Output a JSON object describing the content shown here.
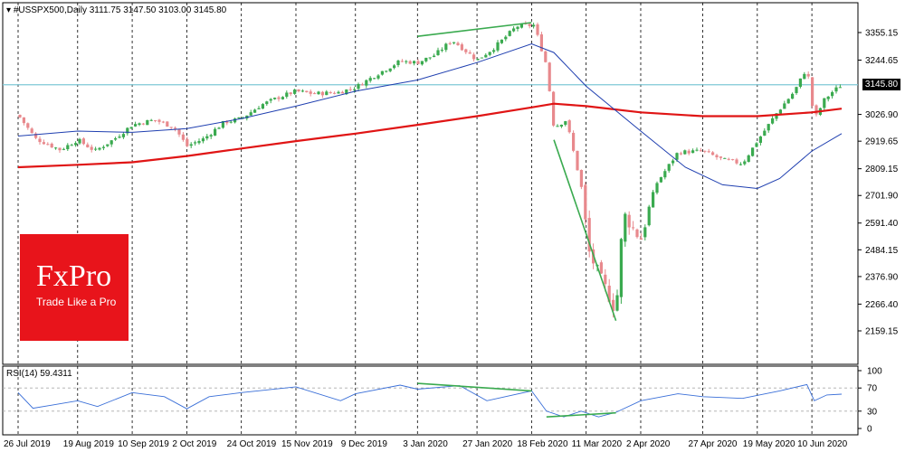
{
  "header": {
    "symbol": "#USSPX500,Daily",
    "ohlc": "3111.75 3147.50 3103.00 3145.80",
    "rsi_label": "RSI(14) 59.4311"
  },
  "branding": {
    "logo_text": "FxPro",
    "tagline": "Trade Like a Pro"
  },
  "colors": {
    "bull": "#3aaa4f",
    "bear": "#e8898d",
    "ma_blue": "#1f3fb0",
    "ma_red": "#e01515",
    "current_line": "#7fc8d6",
    "divergence": "#3aaa4f",
    "rsi_line": "#3a6fd8",
    "logo_bg": "#e8141b"
  },
  "chart_data": [
    {
      "type": "candlestick",
      "title": "#USSPX500,Daily",
      "y_ticks": [
        "3355.15",
        "3244.65",
        "3145.80",
        "3026.90",
        "2919.65",
        "2809.15",
        "2701.90",
        "2591.40",
        "2484.15",
        "2376.90",
        "2266.40",
        "2159.15"
      ],
      "x_ticks": [
        "26 Jul 2019",
        "19 Aug 2019",
        "10 Sep 2019",
        "2 Oct 2019",
        "24 Oct 2019",
        "15 Nov 2019",
        "9 Dec 2019",
        "3 Jan 2020",
        "27 Jan 2020",
        "18 Feb 2020",
        "11 Mar 2020",
        "2 Apr 2020",
        "27 Apr 2020",
        "19 May 2020",
        "10 Jun 2020"
      ],
      "ylim": [
        2150,
        3420
      ],
      "current_price": 3145.8,
      "close_path": [
        [
          "26 Jul 2019",
          3025
        ],
        [
          "2 Aug 2019",
          2930
        ],
        [
          "12 Aug 2019",
          2885
        ],
        [
          "19 Aug 2019",
          2925
        ],
        [
          "26 Aug 2019",
          2880
        ],
        [
          "3 Sep 2019",
          2930
        ],
        [
          "10 Sep 2019",
          2985
        ],
        [
          "19 Sep 2019",
          3005
        ],
        [
          "27 Sep 2019",
          2975
        ],
        [
          "2 Oct 2019",
          2900
        ],
        [
          "9 Oct 2019",
          2930
        ],
        [
          "17 Oct 2019",
          2995
        ],
        [
          "24 Oct 2019",
          3010
        ],
        [
          "1 Nov 2019",
          3065
        ],
        [
          "8 Nov 2019",
          3095
        ],
        [
          "15 Nov 2019",
          3120
        ],
        [
          "22 Nov 2019",
          3110
        ],
        [
          "2 Dec 2019",
          3115
        ],
        [
          "9 Dec 2019",
          3135
        ],
        [
          "18 Dec 2019",
          3190
        ],
        [
          "27 Dec 2019",
          3240
        ],
        [
          "3 Jan 2020",
          3235
        ],
        [
          "10 Jan 2020",
          3265
        ],
        [
          "17 Jan 2020",
          3325
        ],
        [
          "27 Jan 2020",
          3245
        ],
        [
          "3 Feb 2020",
          3295
        ],
        [
          "12 Feb 2020",
          3380
        ],
        [
          "19 Feb 2020",
          3385
        ],
        [
          "24 Feb 2020",
          3225
        ],
        [
          "27 Feb 2020",
          2975
        ],
        [
          "3 Mar 2020",
          3005
        ],
        [
          "9 Mar 2020",
          2740
        ],
        [
          "12 Mar 2020",
          2480
        ],
        [
          "16 Mar 2020",
          2385
        ],
        [
          "20 Mar 2020",
          2305
        ],
        [
          "23 Mar 2020",
          2235
        ],
        [
          "26 Mar 2020",
          2630
        ],
        [
          "2 Apr 2020",
          2525
        ],
        [
          "8 Apr 2020",
          2745
        ],
        [
          "17 Apr 2020",
          2875
        ],
        [
          "27 Apr 2020",
          2880
        ],
        [
          "5 May 2020",
          2845
        ],
        [
          "13 May 2020",
          2830
        ],
        [
          "19 May 2020",
          2920
        ],
        [
          "27 May 2020",
          3035
        ],
        [
          "3 Jun 2020",
          3120
        ],
        [
          "8 Jun 2020",
          3215
        ],
        [
          "11 Jun 2020",
          3005
        ],
        [
          "15 Jun 2020",
          3085
        ],
        [
          "18 Jun 2020",
          3115
        ],
        [
          "22 Jun 2020",
          3145.8
        ]
      ],
      "ma_blue": [
        [
          "26 Jul 2019",
          2940
        ],
        [
          "19 Aug 2019",
          2960
        ],
        [
          "10 Sep 2019",
          2955
        ],
        [
          "2 Oct 2019",
          2970
        ],
        [
          "24 Oct 2019",
          3010
        ],
        [
          "15 Nov 2019",
          3060
        ],
        [
          "9 Dec 2019",
          3120
        ],
        [
          "3 Jan 2020",
          3165
        ],
        [
          "27 Jan 2020",
          3235
        ],
        [
          "18 Feb 2020",
          3310
        ],
        [
          "27 Feb 2020",
          3275
        ],
        [
          "11 Mar 2020",
          3140
        ],
        [
          "2 Apr 2020",
          2960
        ],
        [
          "20 Apr 2020",
          2815
        ],
        [
          "5 May 2020",
          2745
        ],
        [
          "19 May 2020",
          2730
        ],
        [
          "28 May 2020",
          2770
        ],
        [
          "10 Jun 2020",
          2880
        ],
        [
          "22 Jun 2020",
          2950
        ]
      ],
      "ma_red": [
        [
          "26 Jul 2019",
          2815
        ],
        [
          "19 Aug 2019",
          2825
        ],
        [
          "10 Sep 2019",
          2835
        ],
        [
          "2 Oct 2019",
          2860
        ],
        [
          "24 Oct 2019",
          2890
        ],
        [
          "15 Nov 2019",
          2920
        ],
        [
          "9 Dec 2019",
          2950
        ],
        [
          "3 Jan 2020",
          2985
        ],
        [
          "27 Jan 2020",
          3020
        ],
        [
          "18 Feb 2020",
          3055
        ],
        [
          "27 Feb 2020",
          3070
        ],
        [
          "11 Mar 2020",
          3060
        ],
        [
          "2 Apr 2020",
          3035
        ],
        [
          "27 Apr 2020",
          3020
        ],
        [
          "19 May 2020",
          3020
        ],
        [
          "10 Jun 2020",
          3035
        ],
        [
          "22 Jun 2020",
          3050
        ]
      ],
      "divergence_lines": [
        [
          [
            "3 Jan 2020",
            3340
          ],
          [
            "18 Feb 2020",
            3395
          ]
        ],
        [
          [
            "27 Feb 2020",
            2925
          ],
          [
            "23 Mar 2020",
            2200
          ]
        ]
      ]
    },
    {
      "type": "line",
      "title": "RSI(14) 59.4311",
      "value": 59.4311,
      "ylim": [
        0,
        100
      ],
      "y_ticks": [
        100,
        70,
        30,
        0
      ],
      "levels": [
        70,
        30
      ],
      "rsi_path": [
        [
          "26 Jul 2019",
          62
        ],
        [
          "1 Aug 2019",
          35
        ],
        [
          "8 Aug 2019",
          40
        ],
        [
          "19 Aug 2019",
          48
        ],
        [
          "27 Aug 2019",
          38
        ],
        [
          "10 Sep 2019",
          62
        ],
        [
          "23 Sep 2019",
          55
        ],
        [
          "2 Oct 2019",
          34
        ],
        [
          "11 Oct 2019",
          55
        ],
        [
          "24 Oct 2019",
          62
        ],
        [
          "15 Nov 2019",
          72
        ],
        [
          "3 Dec 2019",
          48
        ],
        [
          "9 Dec 2019",
          60
        ],
        [
          "27 Dec 2019",
          75
        ],
        [
          "3 Jan 2020",
          68
        ],
        [
          "20 Jan 2020",
          74
        ],
        [
          "31 Jan 2020",
          48
        ],
        [
          "18 Feb 2020",
          65
        ],
        [
          "24 Feb 2020",
          30
        ],
        [
          "2 Mar 2020",
          20
        ],
        [
          "9 Mar 2020",
          30
        ],
        [
          "16 Mar 2020",
          20
        ],
        [
          "23 Mar 2020",
          28
        ],
        [
          "2 Apr 2020",
          48
        ],
        [
          "17 Apr 2020",
          60
        ],
        [
          "27 Apr 2020",
          55
        ],
        [
          "13 May 2020",
          52
        ],
        [
          "28 May 2020",
          65
        ],
        [
          "8 Jun 2020",
          76
        ],
        [
          "11 Jun 2020",
          48
        ],
        [
          "16 Jun 2020",
          58
        ],
        [
          "22 Jun 2020",
          59.43
        ]
      ],
      "divergence_lines": [
        [
          [
            "3 Jan 2020",
            78
          ],
          [
            "18 Feb 2020",
            65
          ]
        ],
        [
          [
            "24 Feb 2020",
            20
          ],
          [
            "23 Mar 2020",
            27
          ]
        ]
      ]
    }
  ]
}
